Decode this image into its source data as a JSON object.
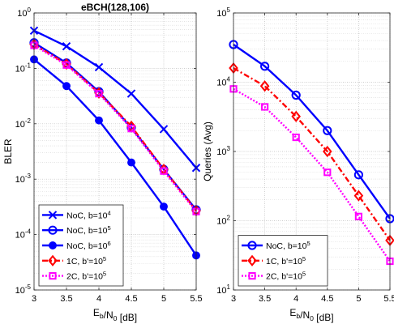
{
  "chart_data": [
    {
      "type": "line",
      "title": "eBCH(128,106)",
      "xlabel": "E_b/N_0 [dB]",
      "ylabel": "BLER",
      "xscale": "linear",
      "yscale": "log",
      "xlim": [
        3,
        5.5
      ],
      "ylim": [
        1e-05,
        1
      ],
      "x": [
        3,
        3.5,
        4,
        4.5,
        5,
        5.5
      ],
      "xticks": [
        "3",
        "3.5",
        "4",
        "4.5",
        "5",
        "5.5"
      ],
      "grid": true,
      "legend_position": "bottom-left",
      "series": [
        {
          "name": "NoC, b=10^4",
          "values": [
            0.48,
            0.25,
            0.105,
            0.035,
            0.008,
            0.0016
          ],
          "color": "#0000ff",
          "line": "solid",
          "marker": "x"
        },
        {
          "name": "NoC, b=10^5",
          "values": [
            0.29,
            0.125,
            0.038,
            0.0085,
            0.0015,
            0.00028
          ],
          "color": "#0000ff",
          "line": "solid",
          "marker": "circle"
        },
        {
          "name": "NoC, b=10^6",
          "values": [
            0.145,
            0.048,
            0.0115,
            0.002,
            0.00032,
            4.2e-05
          ],
          "color": "#0000ff",
          "line": "solid",
          "marker": "dot"
        },
        {
          "name": "1C, b'=10^5",
          "values": [
            0.27,
            0.12,
            0.036,
            0.009,
            0.0015,
            0.00027
          ],
          "color": "#ff0000",
          "line": "dashdot",
          "marker": "diamond"
        },
        {
          "name": "2C, b'=10^5",
          "values": [
            0.26,
            0.115,
            0.035,
            0.0082,
            0.0014,
            0.00026
          ],
          "color": "#ff00ff",
          "line": "dotted",
          "marker": "square"
        }
      ]
    },
    {
      "type": "line",
      "title": "",
      "xlabel": "E_b/N_0 [dB]",
      "ylabel": "Queries (Avg)",
      "xscale": "linear",
      "yscale": "log",
      "xlim": [
        3,
        5.5
      ],
      "ylim": [
        10,
        100000
      ],
      "x": [
        3,
        3.5,
        4,
        4.5,
        5,
        5.5
      ],
      "xticks": [
        "3",
        "3.5",
        "4",
        "4.5",
        "5",
        "5.5"
      ],
      "grid": true,
      "legend_position": "bottom-left",
      "series": [
        {
          "name": "NoC, b=10^5",
          "values": [
            35000,
            17000,
            6500,
            2000,
            460,
            107
          ],
          "color": "#0000ff",
          "line": "solid",
          "marker": "circle"
        },
        {
          "name": "1C, b'=10^5",
          "values": [
            16000,
            8800,
            3200,
            1000,
            230,
            52
          ],
          "color": "#ff0000",
          "line": "dashdot",
          "marker": "diamond"
        },
        {
          "name": "2C, b'=10^5",
          "values": [
            8000,
            4400,
            1600,
            500,
            115,
            26
          ],
          "color": "#ff00ff",
          "line": "dotted",
          "marker": "square"
        }
      ]
    }
  ]
}
